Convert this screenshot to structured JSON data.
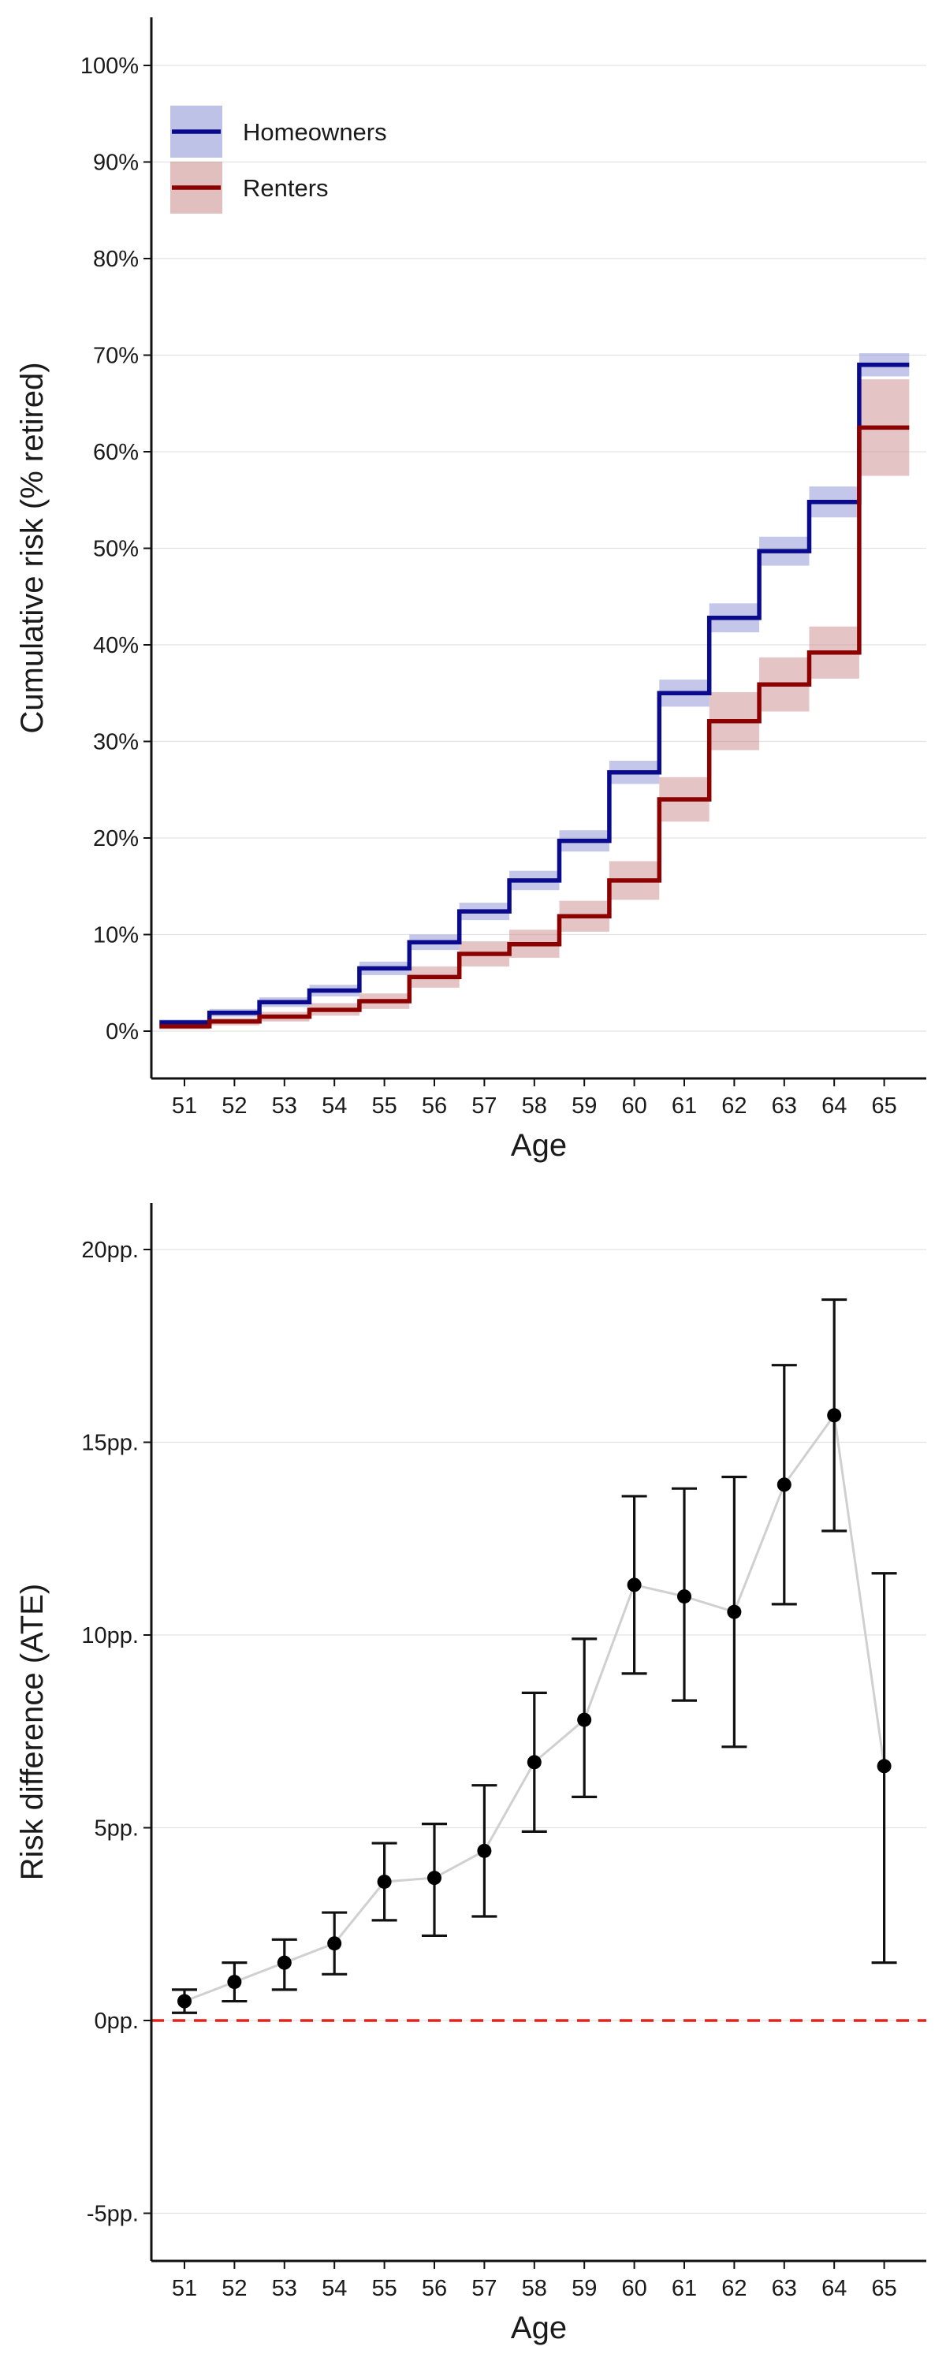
{
  "chart_data": [
    {
      "type": "line",
      "subtype": "step-with-confidence-bands",
      "title": "",
      "xlabel": "Age",
      "ylabel": "Cumulative risk (% retired)",
      "x": [
        51,
        52,
        53,
        54,
        55,
        56,
        57,
        58,
        59,
        60,
        61,
        62,
        63,
        64,
        65
      ],
      "xtick_labels": [
        "51",
        "52",
        "53",
        "54",
        "55",
        "56",
        "57",
        "58",
        "59",
        "60",
        "61",
        "62",
        "63",
        "64",
        "65"
      ],
      "ylim": [
        -5,
        105
      ],
      "yticks": [
        0,
        10,
        20,
        30,
        40,
        50,
        60,
        70,
        80,
        90,
        100
      ],
      "ytick_labels": [
        "0%",
        "10%",
        "20%",
        "30%",
        "40%",
        "50%",
        "60%",
        "70%",
        "80%",
        "90%",
        "100%"
      ],
      "grid": "horizontal",
      "legend_position": "top-left",
      "series": [
        {
          "name": "Homeowners",
          "color": "#0a0a8c",
          "band_color": "#8a8fd4",
          "values": [
            0.9,
            1.9,
            3.0,
            4.2,
            6.5,
            9.2,
            12.4,
            15.6,
            19.7,
            26.8,
            35.0,
            42.8,
            49.7,
            54.8,
            69.0
          ],
          "lower": [
            0.6,
            1.5,
            2.5,
            3.6,
            5.8,
            8.4,
            11.5,
            14.6,
            18.6,
            25.6,
            33.6,
            41.3,
            48.2,
            53.2,
            67.8
          ],
          "upper": [
            1.2,
            2.3,
            3.5,
            4.8,
            7.2,
            10.0,
            13.3,
            16.6,
            20.8,
            28.0,
            36.4,
            44.3,
            51.2,
            56.4,
            70.2
          ]
        },
        {
          "name": "Renters",
          "color": "#8c0000",
          "band_color": "#c98a8a",
          "values": [
            0.5,
            1.0,
            1.5,
            2.2,
            3.1,
            5.6,
            8.0,
            9.0,
            11.9,
            15.6,
            24.0,
            32.1,
            35.9,
            39.2,
            62.5
          ],
          "lower": [
            0.2,
            0.6,
            1.0,
            1.6,
            2.3,
            4.5,
            6.7,
            7.6,
            10.3,
            13.6,
            21.7,
            29.1,
            33.1,
            36.5,
            57.5
          ],
          "upper": [
            0.8,
            1.4,
            2.0,
            2.9,
            3.9,
            6.7,
            9.3,
            10.5,
            13.5,
            17.6,
            26.3,
            35.1,
            38.7,
            41.9,
            67.5
          ]
        }
      ]
    },
    {
      "type": "scatter",
      "subtype": "point-with-error-bars-and-connecting-line",
      "title": "",
      "xlabel": "Age",
      "ylabel": "Risk difference (ATE)",
      "x": [
        51,
        52,
        53,
        54,
        55,
        56,
        57,
        58,
        59,
        60,
        61,
        62,
        63,
        64,
        65
      ],
      "xtick_labels": [
        "51",
        "52",
        "53",
        "54",
        "55",
        "56",
        "57",
        "58",
        "59",
        "60",
        "61",
        "62",
        "63",
        "64",
        "65"
      ],
      "ylim": [
        -6.2,
        21.2
      ],
      "yticks": [
        -5,
        0,
        5,
        10,
        15,
        20
      ],
      "ytick_labels": [
        "-5pp.",
        "0pp.",
        "5pp.",
        "10pp.",
        "15pp.",
        "20pp."
      ],
      "grid": "horizontal",
      "reference_line": {
        "y": 0,
        "style": "dashed",
        "color": "#e8201a"
      },
      "point_color": "#000000",
      "line_color": "#d0d0d0",
      "series": [
        {
          "values": [
            0.5,
            1.0,
            1.5,
            2.0,
            3.6,
            3.7,
            4.4,
            6.7,
            7.8,
            11.3,
            11.0,
            10.6,
            13.9,
            15.7,
            6.6
          ],
          "lower": [
            0.2,
            0.5,
            0.8,
            1.2,
            2.6,
            2.2,
            2.7,
            4.9,
            5.8,
            9.0,
            8.3,
            7.1,
            10.8,
            12.7,
            1.5
          ],
          "upper": [
            0.8,
            1.5,
            2.1,
            2.8,
            4.6,
            5.1,
            6.1,
            8.5,
            9.9,
            13.6,
            13.8,
            14.1,
            17.0,
            18.7,
            11.6
          ]
        }
      ]
    }
  ]
}
